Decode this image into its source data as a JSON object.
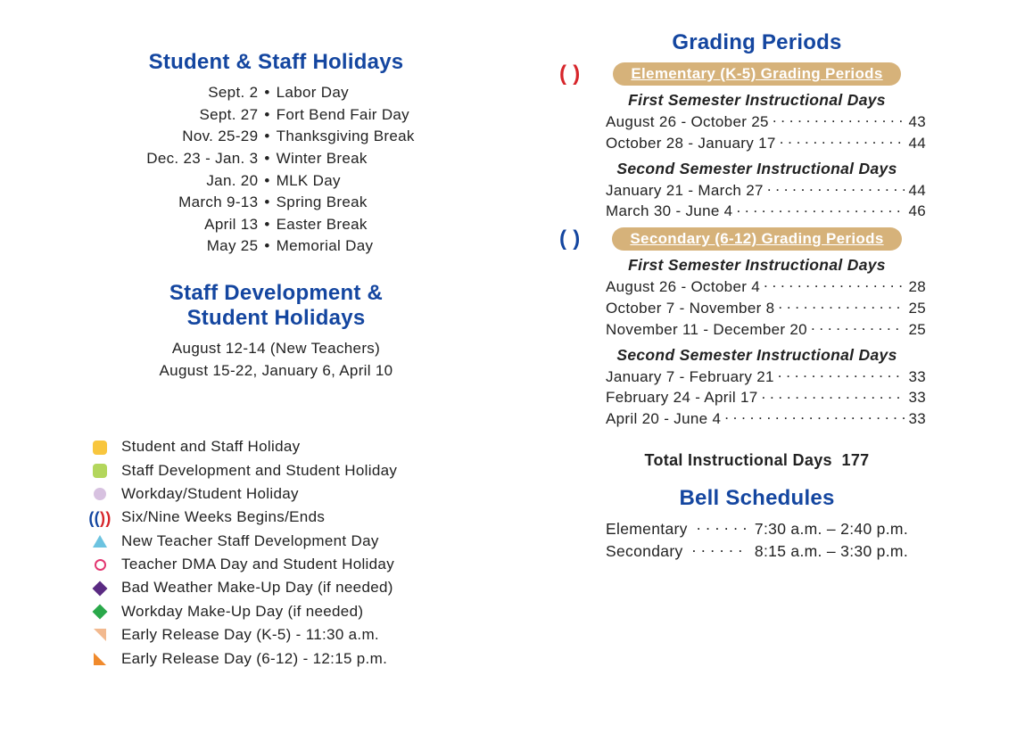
{
  "colors": {
    "heading_blue": "#1446a0",
    "text": "#222222",
    "pill_bg": "#d6b27a",
    "pill_text": "#ffffff",
    "paren_open": "#1446a0",
    "paren_close": "#d7262b"
  },
  "left": {
    "holidays_title": "Student & Staff Holidays",
    "holidays": [
      {
        "date": "Sept. 2",
        "label": "Labor Day"
      },
      {
        "date": "Sept. 27",
        "label": "Fort Bend Fair Day"
      },
      {
        "date": "Nov. 25-29",
        "label": "Thanksgiving Break"
      },
      {
        "date": "Dec. 23 - Jan. 3",
        "label": "Winter Break"
      },
      {
        "date": "Jan. 20",
        "label": "MLK Day"
      },
      {
        "date": "March 9-13",
        "label": "Spring Break"
      },
      {
        "date": "April 13",
        "label": "Easter Break"
      },
      {
        "date": "May 25",
        "label": "Memorial Day"
      }
    ],
    "staffdev_title": "Staff Development &\nStudent Holidays",
    "staffdev_lines": [
      "August 12-14 (New Teachers)",
      "August 15-22, January 6, April 10"
    ],
    "legend": [
      {
        "icon": "square",
        "color": "#f8c63e",
        "label": "Student and Staff Holiday"
      },
      {
        "icon": "square",
        "color": "#b3d65c",
        "label": "Staff Development and Student Holiday"
      },
      {
        "icon": "circle",
        "color": "#d7c1e0",
        "label": "Workday/Student Holiday"
      },
      {
        "icon": "parens",
        "label": "Six/Nine Weeks Begins/Ends"
      },
      {
        "icon": "triangle",
        "color": "#6cc3e0",
        "label": "New Teacher Staff Development Day"
      },
      {
        "icon": "ring",
        "color": "#e23670",
        "label": "Teacher DMA Day and Student Holiday"
      },
      {
        "icon": "diamond",
        "color": "#5a2a82",
        "label": "Bad Weather Make-Up Day (if needed)"
      },
      {
        "icon": "diamond",
        "color": "#2aa84a",
        "label": "Workday Make-Up Day (if needed)"
      },
      {
        "icon": "corner-tr",
        "color": "#f2b98f",
        "label": "Early Release Day (K-5) - 11:30 a.m."
      },
      {
        "icon": "corner-bl",
        "color": "#f08a2c",
        "label": "Early Release Day (6-12) - 12:15 p.m."
      }
    ]
  },
  "right": {
    "grading_title": "Grading Periods",
    "elem_paren_colors": {
      "open": "#d7262b",
      "close": "#d7262b"
    },
    "sec_paren_colors": {
      "open": "#1446a0",
      "close": "#1446a0"
    },
    "elem_pill": "Elementary (K-5) Grading Periods",
    "sec_pill": "Secondary (6-12) Grading Periods",
    "sem1_head": "First Semester Instructional Days",
    "sem2_head": "Second Semester Instructional Days",
    "elem_sem1": [
      {
        "range": "August 26 - October 25",
        "days": "43"
      },
      {
        "range": "October 28 - January 17",
        "days": "44"
      }
    ],
    "elem_sem2": [
      {
        "range": "January 21 - March 27",
        "days": "44"
      },
      {
        "range": "March 30 - June 4",
        "days": "46"
      }
    ],
    "sec_sem1": [
      {
        "range": "August 26 - October 4",
        "days": "28"
      },
      {
        "range": "October 7 - November 8",
        "days": "25"
      },
      {
        "range": "November 11 - December 20",
        "days": "25"
      }
    ],
    "sec_sem2": [
      {
        "range": "January 7 - February 21",
        "days": "33"
      },
      {
        "range": "February 24 - April 17",
        "days": "33"
      },
      {
        "range": "April 20 - June 4",
        "days": "33"
      }
    ],
    "total_label": "Total Instructional Days",
    "total_value": "177",
    "bell_title": "Bell Schedules",
    "bell": [
      {
        "label": "Elementary",
        "time": "7:30 a.m. – 2:40 p.m."
      },
      {
        "label": "Secondary",
        "time": "8:15 a.m. – 3:30 p.m."
      }
    ]
  }
}
